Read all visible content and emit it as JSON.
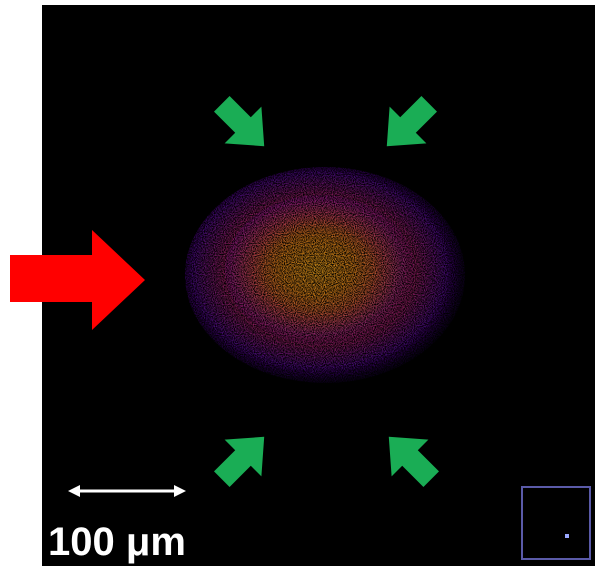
{
  "scale_bar": {
    "label": "100 μm"
  }
}
